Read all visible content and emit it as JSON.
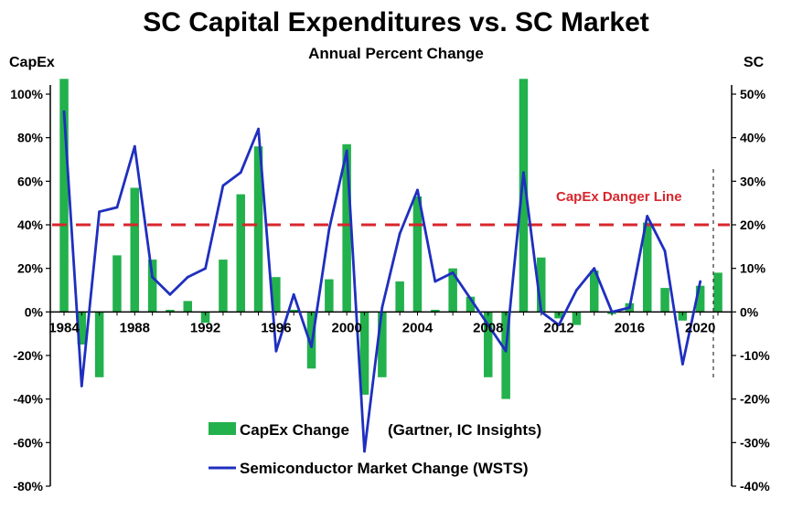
{
  "chart_data": {
    "type": "bar",
    "title": "SC Capital Expenditures vs. SC Market",
    "subtitle": "Annual Percent Change",
    "ylabel_left": "CapEx",
    "ylabel_right": "SC",
    "ylim_left": [
      -80,
      100
    ],
    "ylim_right": [
      -40,
      50
    ],
    "yticks_left": [
      "100%",
      "80%",
      "60%",
      "40%",
      "20%",
      "0%",
      "-20%",
      "-40%",
      "-60%",
      "-80%"
    ],
    "yticks_right": [
      "50%",
      "40%",
      "30%",
      "20%",
      "10%",
      "0%",
      "-10%",
      "-20%",
      "-30%",
      "-40%"
    ],
    "xtick_labels": [
      "1984",
      "1988",
      "1992",
      "1996",
      "2000",
      "2004",
      "2008",
      "2012",
      "2016",
      "2020"
    ],
    "legend_position": "bottom-center",
    "grid": false,
    "danger_line": {
      "label": "CapEx Danger Line",
      "value": 40,
      "color": "#d8262c"
    },
    "series": [
      {
        "name": "CapEx Change",
        "name_note": "(Gartner, IC Insights)",
        "kind": "bar",
        "axis": "left",
        "color": "#22b14c",
        "x": [
          1984,
          1985,
          1986,
          1987,
          1988,
          1989,
          1990,
          1991,
          1992,
          1993,
          1994,
          1995,
          1996,
          1997,
          1998,
          1999,
          2000,
          2001,
          2002,
          2003,
          2004,
          2005,
          2006,
          2007,
          2008,
          2009,
          2010,
          2011,
          2012,
          2013,
          2014,
          2015,
          2016,
          2017,
          2018,
          2019,
          2020,
          2021
        ],
        "values": [
          107,
          -15,
          -30,
          26,
          57,
          24,
          1,
          5,
          -5,
          24,
          54,
          76,
          16,
          1,
          -26,
          15,
          77,
          -38,
          -30,
          14,
          53,
          1,
          20,
          7,
          -30,
          -40,
          107,
          25,
          -3,
          -6,
          19,
          -1,
          4,
          41,
          11,
          -4,
          12,
          18
        ]
      },
      {
        "name": "Semiconductor Market Change (WSTS)",
        "kind": "line",
        "axis": "right",
        "color": "#1f2fbf",
        "x": [
          1984,
          1985,
          1986,
          1987,
          1988,
          1989,
          1990,
          1991,
          1992,
          1993,
          1994,
          1995,
          1996,
          1997,
          1998,
          1999,
          2000,
          2001,
          2002,
          2003,
          2004,
          2005,
          2006,
          2007,
          2008,
          2009,
          2010,
          2011,
          2012,
          2013,
          2014,
          2015,
          2016,
          2017,
          2018,
          2019,
          2020
        ],
        "values": [
          46,
          -17,
          23,
          24,
          38,
          8,
          4,
          8,
          10,
          29,
          32,
          42,
          -9,
          4,
          -8,
          19,
          37,
          -32,
          1,
          18,
          28,
          7,
          9,
          3,
          -3,
          -9,
          32,
          0,
          -3,
          5,
          10,
          0,
          1,
          22,
          14,
          -12,
          7
        ]
      }
    ]
  }
}
